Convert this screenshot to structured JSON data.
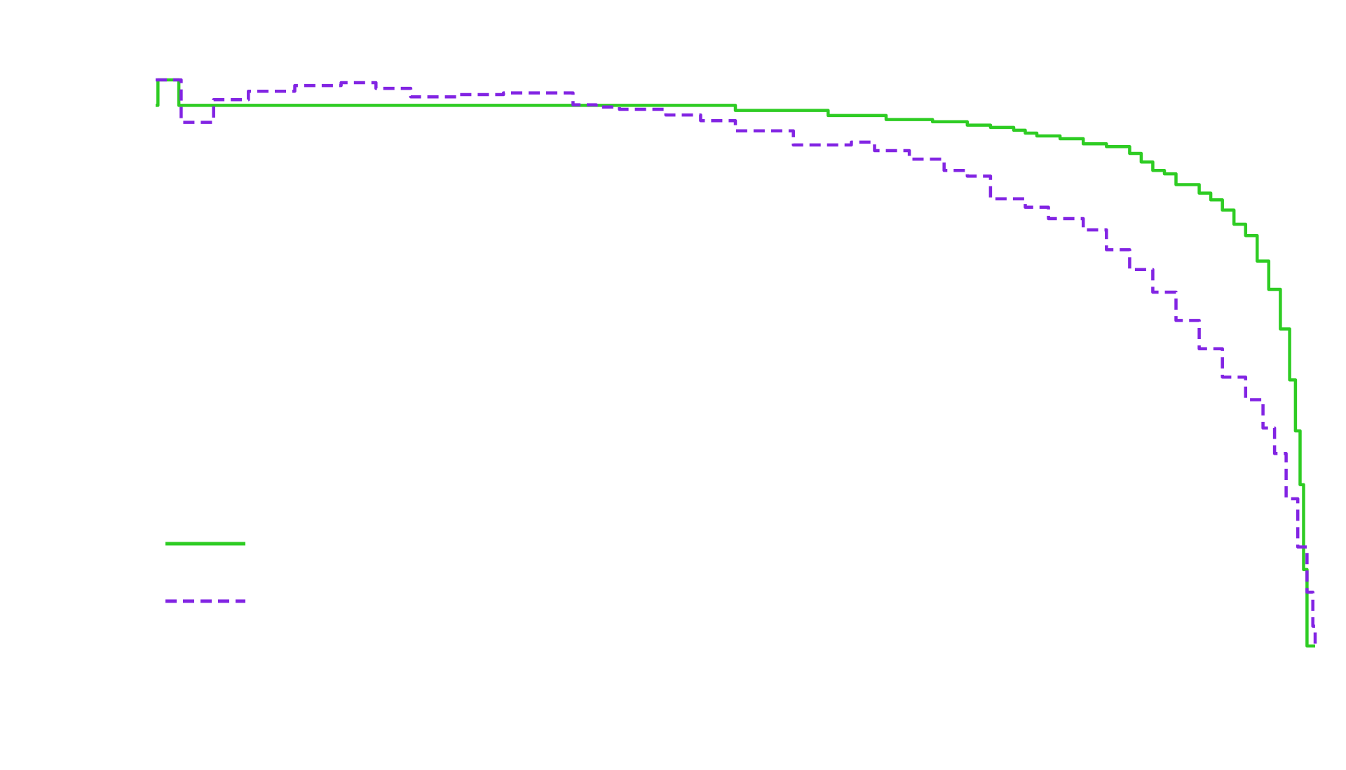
{
  "chart_data": {
    "type": "line",
    "title": "",
    "xlabel": "",
    "ylabel": "",
    "xlim": [
      0,
      1
    ],
    "ylim": [
      0,
      1
    ],
    "grid": false,
    "legend_position": "bottom-left",
    "series": [
      {
        "name": "",
        "color": "#2ecc23",
        "style": "solid",
        "step": true,
        "x": [
          0.0,
          0.002,
          0.02,
          0.2,
          0.4,
          0.467,
          0.5,
          0.55,
          0.58,
          0.6,
          0.63,
          0.65,
          0.67,
          0.69,
          0.7,
          0.71,
          0.72,
          0.73,
          0.74,
          0.75,
          0.76,
          0.78,
          0.8,
          0.82,
          0.84,
          0.85,
          0.86,
          0.87,
          0.88,
          0.9,
          0.91,
          0.92,
          0.93,
          0.94,
          0.95,
          0.96,
          0.97,
          0.978,
          0.983,
          0.987,
          0.99,
          0.993,
          0.996,
          0.999,
          1.0
        ],
        "y": [
          0.955,
          1.0,
          0.955,
          0.955,
          0.955,
          0.955,
          0.946,
          0.946,
          0.937,
          0.937,
          0.93,
          0.93,
          0.926,
          0.926,
          0.92,
          0.92,
          0.916,
          0.916,
          0.911,
          0.906,
          0.901,
          0.896,
          0.887,
          0.882,
          0.87,
          0.855,
          0.84,
          0.834,
          0.815,
          0.8,
          0.788,
          0.77,
          0.745,
          0.725,
          0.68,
          0.63,
          0.56,
          0.47,
          0.38,
          0.285,
          0.135,
          0.0,
          0.0,
          0.0,
          0.0
        ]
      },
      {
        "name": "",
        "color": "#8224e3",
        "style": "dashed",
        "step": true,
        "x": [
          0.0,
          0.02,
          0.022,
          0.05,
          0.08,
          0.12,
          0.16,
          0.19,
          0.22,
          0.26,
          0.3,
          0.36,
          0.38,
          0.4,
          0.44,
          0.47,
          0.5,
          0.55,
          0.6,
          0.62,
          0.65,
          0.68,
          0.7,
          0.72,
          0.75,
          0.77,
          0.8,
          0.82,
          0.84,
          0.86,
          0.88,
          0.9,
          0.92,
          0.94,
          0.955,
          0.965,
          0.975,
          0.985,
          0.993,
          0.998,
          1.0
        ],
        "y": [
          1.0,
          1.0,
          0.925,
          0.965,
          0.98,
          0.99,
          0.995,
          0.985,
          0.97,
          0.974,
          0.977,
          0.956,
          0.952,
          0.948,
          0.938,
          0.928,
          0.91,
          0.885,
          0.89,
          0.875,
          0.86,
          0.84,
          0.83,
          0.79,
          0.775,
          0.755,
          0.735,
          0.7,
          0.665,
          0.625,
          0.575,
          0.525,
          0.475,
          0.435,
          0.385,
          0.34,
          0.26,
          0.175,
          0.095,
          0.035,
          0.0
        ]
      }
    ]
  }
}
